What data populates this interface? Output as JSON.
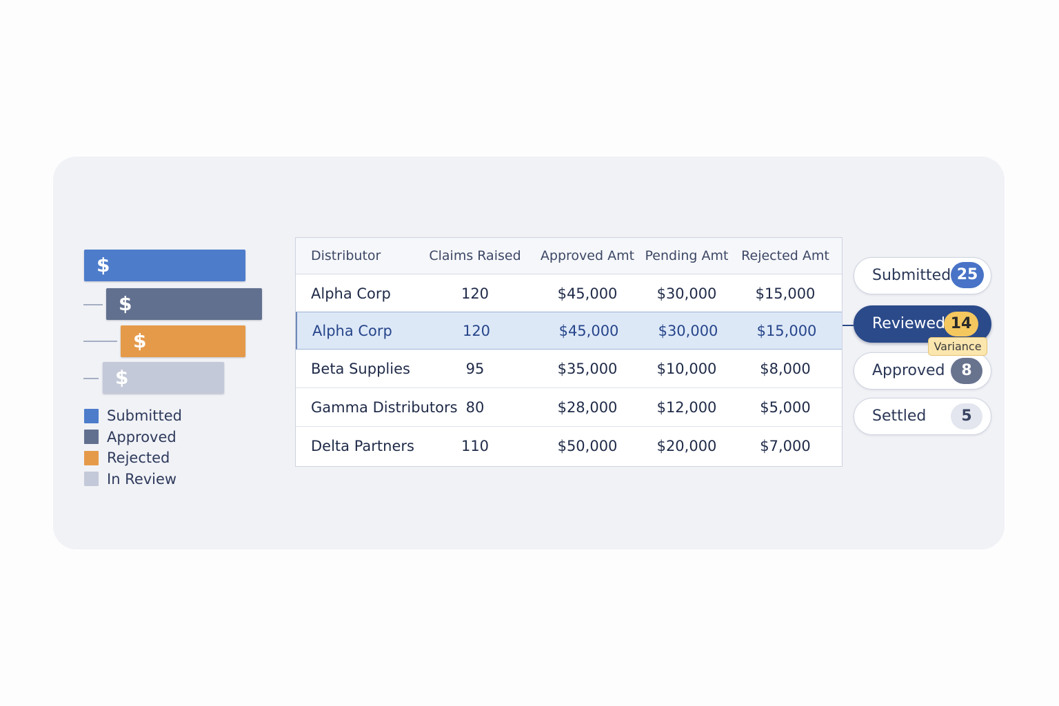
{
  "bars": [
    {
      "symbol": "$",
      "color": "#4d7ccb"
    },
    {
      "symbol": "$",
      "color": "#62708f"
    },
    {
      "symbol": "$",
      "color": "#e59a4a"
    },
    {
      "symbol": "$",
      "color": "#c3c9d8"
    }
  ],
  "legend": [
    {
      "label": "Submitted",
      "color": "#4d7ccb"
    },
    {
      "label": "Approved",
      "color": "#62708f"
    },
    {
      "label": "Rejected",
      "color": "#e59a4a"
    },
    {
      "label": "In Review",
      "color": "#c3c9d8"
    }
  ],
  "table": {
    "columns": [
      "Distributor",
      "Claims Raised",
      "Approved Amt",
      "Pending Amt",
      "Rejected Amt"
    ],
    "rows": [
      [
        "Alpha Corp",
        "120",
        "$45,000",
        "$30,000",
        "$15,000"
      ],
      [
        "Alpha Corp",
        "120",
        "$45,000",
        "$30,000",
        "$15,000"
      ],
      [
        "Beta Supplies",
        "95",
        "$35,000",
        "$10,000",
        "$8,000"
      ],
      [
        "Gamma Distributors",
        "80",
        "$28,000",
        "$12,000",
        "$5,000"
      ],
      [
        "Delta Partners",
        "110",
        "$50,000",
        "$20,000",
        "$7,000"
      ]
    ],
    "selected_row": 1
  },
  "statuses": [
    {
      "label": "Submitted",
      "count": "25"
    },
    {
      "label": "Reviewed",
      "count": "14",
      "active": true
    },
    {
      "label": "Approved",
      "count": "8"
    },
    {
      "label": "Settled",
      "count": "5"
    }
  ],
  "variance_tag": "Variance",
  "colors": {
    "panel_bg": "#f1f2f6",
    "accent_navy": "#2b4a8a",
    "highlight_row": "#dde8f7",
    "variance_yellow": "#f4c75f"
  }
}
